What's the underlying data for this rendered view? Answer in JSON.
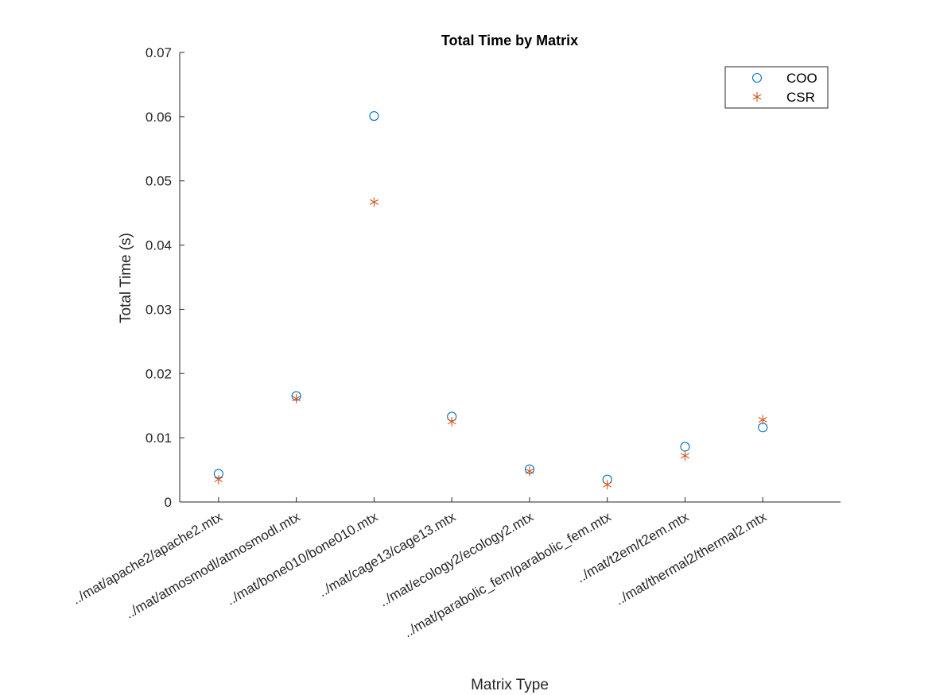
{
  "chart_data": {
    "type": "scatter",
    "title": "Total Time by Matrix",
    "xlabel": "Matrix Type",
    "ylabel": "Total Time (s)",
    "ylim": [
      0,
      0.07
    ],
    "yticks": [
      "0",
      "0.01",
      "0.02",
      "0.03",
      "0.04",
      "0.05",
      "0.06",
      "0.07"
    ],
    "legend_position": "top-right",
    "categories": [
      "../mat/apache2/apache2.mtx",
      "../mat/atmosmodl/atmosmodl.mtx",
      "../mat/bone010/bone010.mtx",
      "../mat/cage13/cage13.mtx",
      "../mat/ecology2/ecology2.mtx",
      "../mat/parabolic_fem/parabolic_fem.mtx",
      "../mat/t2em/t2em.mtx",
      "../mat/thermal2/thermal2.mtx"
    ],
    "series": [
      {
        "name": "COO",
        "marker": "circle",
        "color": "#0072BD",
        "values": [
          0.0044,
          0.0165,
          0.0601,
          0.0133,
          0.0051,
          0.0035,
          0.0086,
          0.0116
        ]
      },
      {
        "name": "CSR",
        "marker": "asterisk",
        "color": "#D95319",
        "values": [
          0.0035,
          0.0161,
          0.0467,
          0.0125,
          0.0048,
          0.0027,
          0.0072,
          0.0128
        ]
      }
    ]
  }
}
